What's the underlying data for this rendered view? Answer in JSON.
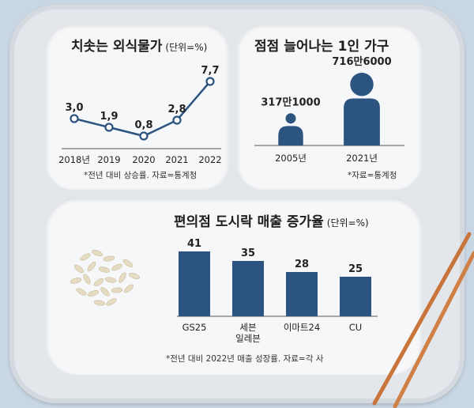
{
  "chart_data": [
    {
      "type": "line",
      "title": "치솟는 외식물가",
      "unit": "(단위=%)",
      "x": [
        "2018년",
        "2019",
        "2020",
        "2021",
        "2022"
      ],
      "series": [
        {
          "values": [
            3.0,
            1.9,
            0.8,
            2.8,
            7.7
          ]
        }
      ],
      "value_labels": [
        "3,0",
        "1,9",
        "0,8",
        "2,8",
        "7,7"
      ],
      "note": "*전년 대비 상승률. 자료=통계청",
      "color": "#2c5480"
    },
    {
      "type": "bar",
      "title": "점점 늘어나는 1인 가구",
      "categories": [
        "2005년",
        "2021년"
      ],
      "values": [
        3171000,
        7166000
      ],
      "value_labels": [
        "317만1000",
        "716만6000"
      ],
      "note": "*자료=통계청",
      "color": "#2c5480",
      "style": "person-icons"
    },
    {
      "type": "bar",
      "title": "편의점 도시락 매출 증가율",
      "unit": "(단위=%)",
      "categories": [
        "GS25",
        "세븐\n일레븐",
        "이마트24",
        "CU"
      ],
      "values": [
        41,
        35,
        28,
        25
      ],
      "value_labels": [
        "41",
        "35",
        "28",
        "25"
      ],
      "note": "*전년 대비 2022년 매출 성장률. 자료=각 사",
      "color": "#2c5480"
    }
  ]
}
